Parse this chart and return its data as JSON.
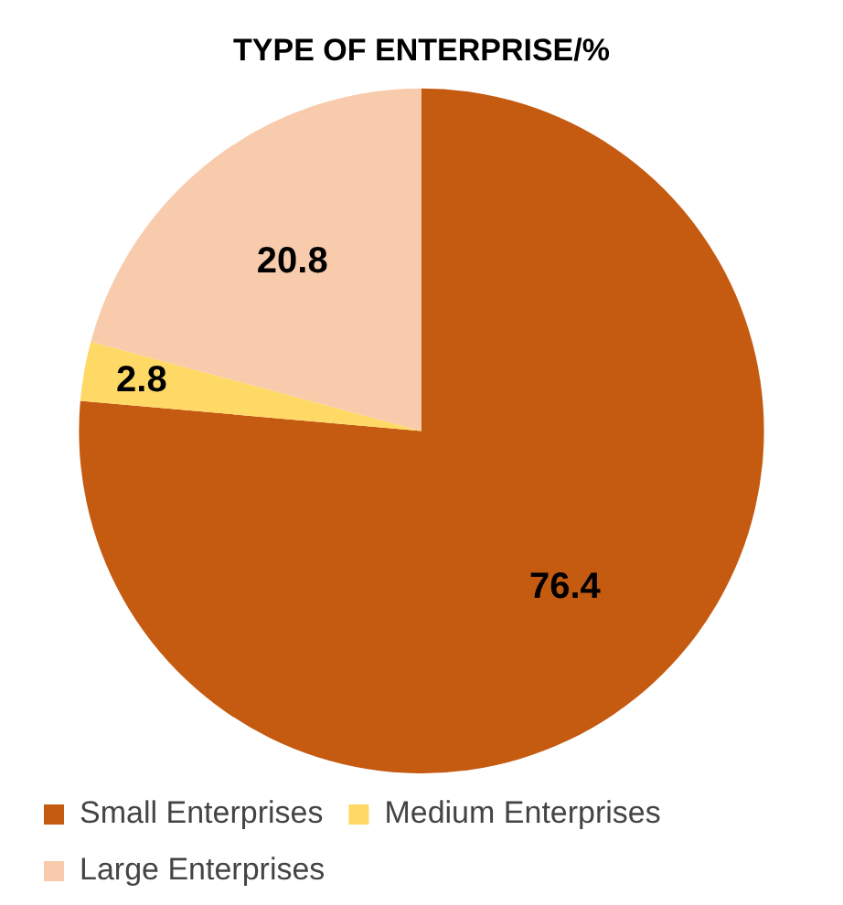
{
  "chart_data": {
    "type": "pie",
    "title": "TYPE OF ENTERPRISE/%",
    "categories": [
      "Small Enterprises",
      "Medium Enterprises",
      "Large Enterprises"
    ],
    "values": [
      76.4,
      2.8,
      20.8
    ],
    "colors": [
      "#c55a11",
      "#ffd966",
      "#f8cbad"
    ],
    "data_labels": true,
    "legend": "bottom"
  }
}
